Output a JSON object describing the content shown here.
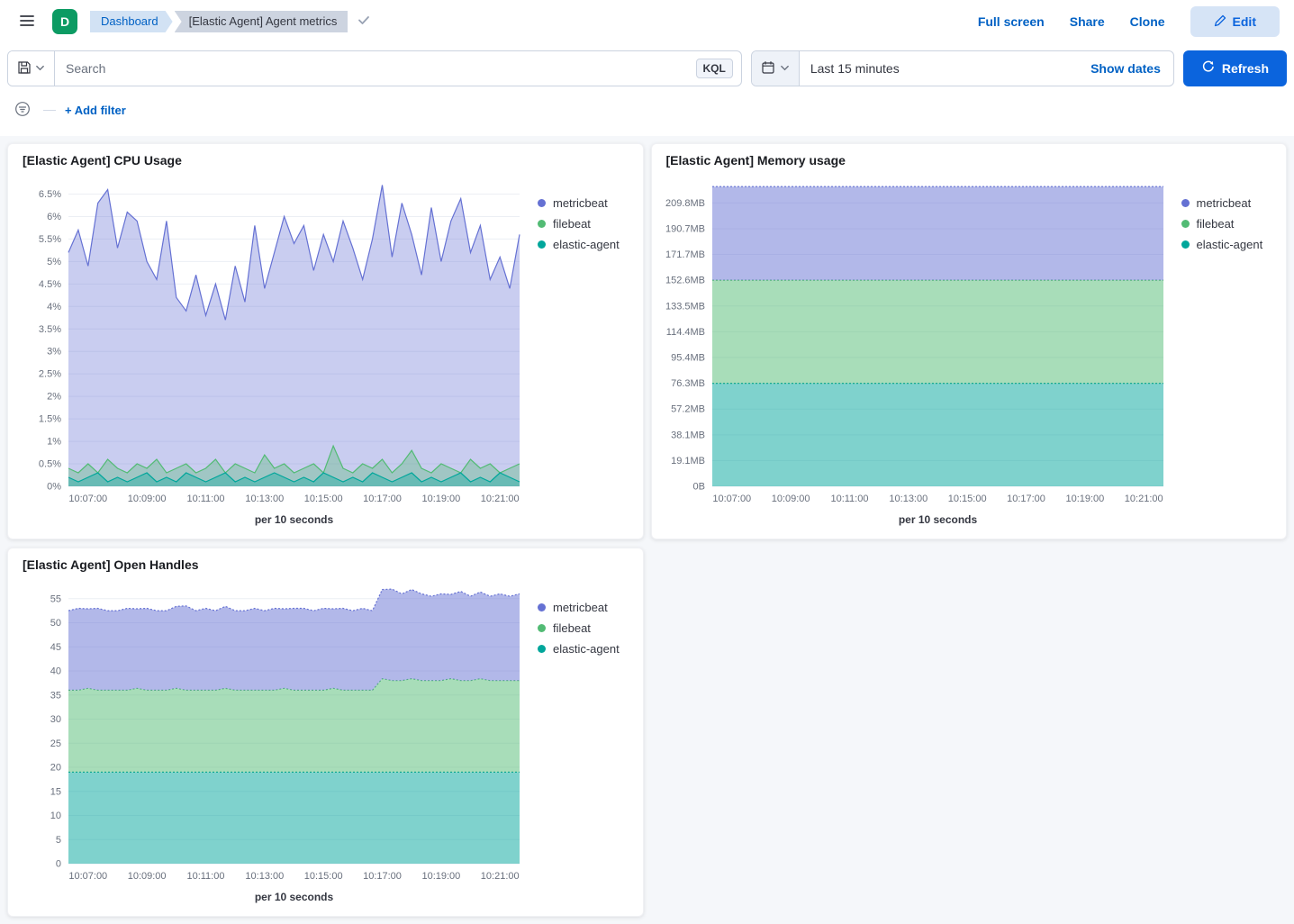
{
  "colors": {
    "primary_button": "#0b64dd",
    "link": "#0061c4"
  },
  "header": {
    "avatar_letter": "D",
    "breadcrumbs": {
      "parent": "Dashboard",
      "current": "[Elastic Agent] Agent metrics"
    },
    "actions": {
      "full_screen": "Full screen",
      "share": "Share",
      "clone": "Clone",
      "edit": "Edit"
    }
  },
  "query_bar": {
    "search_placeholder": "Search",
    "kql_badge": "KQL",
    "time_range_value": "Last 15 minutes",
    "show_dates_label": "Show dates",
    "refresh_label": "Refresh"
  },
  "filter_bar": {
    "add_filter_label": "+ Add filter"
  },
  "chart_data": [
    {
      "type": "area",
      "title": "[Elastic Agent] CPU Usage",
      "stacked": false,
      "fill_opacity": 0.35,
      "line_dash": "",
      "x_axis_title": "per 10 seconds",
      "y_max": 6.73,
      "y_ticks": [
        {
          "value": 0,
          "label": "0%"
        },
        {
          "value": 0.5,
          "label": "0.5%"
        },
        {
          "value": 1,
          "label": "1%"
        },
        {
          "value": 1.5,
          "label": "1.5%"
        },
        {
          "value": 2,
          "label": "2%"
        },
        {
          "value": 2.5,
          "label": "2.5%"
        },
        {
          "value": 3,
          "label": "3%"
        },
        {
          "value": 3.5,
          "label": "3.5%"
        },
        {
          "value": 4,
          "label": "4%"
        },
        {
          "value": 4.5,
          "label": "4.5%"
        },
        {
          "value": 5,
          "label": "5%"
        },
        {
          "value": 5.5,
          "label": "5.5%"
        },
        {
          "value": 6,
          "label": "6%"
        },
        {
          "value": 6.5,
          "label": "6.5%"
        }
      ],
      "x_ticks": [
        {
          "index": 2,
          "label": "10:07:00"
        },
        {
          "index": 8,
          "label": "10:09:00"
        },
        {
          "index": 14,
          "label": "10:11:00"
        },
        {
          "index": 20,
          "label": "10:13:00"
        },
        {
          "index": 26,
          "label": "10:15:00"
        },
        {
          "index": 32,
          "label": "10:17:00"
        },
        {
          "index": 38,
          "label": "10:19:00"
        },
        {
          "index": 44,
          "label": "10:21:00"
        }
      ],
      "series": [
        {
          "name": "metricbeat",
          "color": "#6571d3",
          "values": [
            5.2,
            5.7,
            4.9,
            6.3,
            6.6,
            5.3,
            6.1,
            5.9,
            5.0,
            4.6,
            5.9,
            4.2,
            3.9,
            4.7,
            3.8,
            4.5,
            3.7,
            4.9,
            4.1,
            5.8,
            4.4,
            5.2,
            6.0,
            5.4,
            5.8,
            4.8,
            5.6,
            5.0,
            5.9,
            5.3,
            4.6,
            5.5,
            6.7,
            5.1,
            6.3,
            5.6,
            4.7,
            6.2,
            5.0,
            5.9,
            6.4,
            5.2,
            5.8,
            4.6,
            5.1,
            4.4,
            5.6
          ]
        },
        {
          "name": "filebeat",
          "color": "#52bb74",
          "values": [
            0.4,
            0.3,
            0.5,
            0.3,
            0.6,
            0.4,
            0.3,
            0.5,
            0.4,
            0.6,
            0.3,
            0.4,
            0.5,
            0.3,
            0.4,
            0.6,
            0.3,
            0.5,
            0.4,
            0.3,
            0.7,
            0.4,
            0.5,
            0.3,
            0.4,
            0.5,
            0.3,
            0.9,
            0.4,
            0.3,
            0.5,
            0.4,
            0.6,
            0.3,
            0.5,
            0.8,
            0.4,
            0.3,
            0.5,
            0.4,
            0.3,
            0.6,
            0.4,
            0.5,
            0.3,
            0.4,
            0.5
          ]
        },
        {
          "name": "elastic-agent",
          "color": "#00a69b",
          "values": [
            0.2,
            0.1,
            0.2,
            0.3,
            0.1,
            0.2,
            0.1,
            0.2,
            0.3,
            0.1,
            0.2,
            0.1,
            0.3,
            0.2,
            0.1,
            0.2,
            0.3,
            0.1,
            0.2,
            0.1,
            0.2,
            0.3,
            0.2,
            0.1,
            0.2,
            0.1,
            0.3,
            0.2,
            0.1,
            0.2,
            0.1,
            0.3,
            0.2,
            0.1,
            0.2,
            0.3,
            0.1,
            0.2,
            0.1,
            0.2,
            0.3,
            0.1,
            0.2,
            0.1,
            0.3,
            0.2,
            0.1
          ]
        }
      ]
    },
    {
      "type": "area",
      "title": "[Elastic Agent] Memory usage",
      "stacked": true,
      "fill_opacity": 0.5,
      "line_dash": "2,2",
      "x_axis_title": "per 10 seconds",
      "y_max": 224,
      "y_ticks": [
        {
          "value": 0,
          "label": "0B"
        },
        {
          "value": 19.1,
          "label": "19.1MB"
        },
        {
          "value": 38.1,
          "label": "38.1MB"
        },
        {
          "value": 57.2,
          "label": "57.2MB"
        },
        {
          "value": 76.3,
          "label": "76.3MB"
        },
        {
          "value": 95.4,
          "label": "95.4MB"
        },
        {
          "value": 114.4,
          "label": "114.4MB"
        },
        {
          "value": 133.5,
          "label": "133.5MB"
        },
        {
          "value": 152.6,
          "label": "152.6MB"
        },
        {
          "value": 171.7,
          "label": "171.7MB"
        },
        {
          "value": 190.7,
          "label": "190.7MB"
        },
        {
          "value": 209.8,
          "label": "209.8MB"
        }
      ],
      "x_ticks": [
        {
          "index": 2,
          "label": "10:07:00"
        },
        {
          "index": 8,
          "label": "10:09:00"
        },
        {
          "index": 14,
          "label": "10:11:00"
        },
        {
          "index": 20,
          "label": "10:13:00"
        },
        {
          "index": 26,
          "label": "10:15:00"
        },
        {
          "index": 32,
          "label": "10:17:00"
        },
        {
          "index": 38,
          "label": "10:19:00"
        },
        {
          "index": 44,
          "label": "10:21:00"
        }
      ],
      "series": [
        {
          "name": "metricbeat",
          "color": "#6571d3",
          "values": {
            "repeat": 69.3,
            "count": 47
          }
        },
        {
          "name": "filebeat",
          "color": "#52bb74",
          "values": {
            "repeat": 76.3,
            "count": 47
          }
        },
        {
          "name": "elastic-agent",
          "color": "#00a69b",
          "values": {
            "repeat": 76.3,
            "count": 47
          }
        }
      ]
    },
    {
      "type": "area",
      "title": "[Elastic Agent] Open Handles",
      "stacked": true,
      "fill_opacity": 0.5,
      "line_dash": "2,2",
      "x_axis_title": "per 10 seconds",
      "y_max": 57.2,
      "y_ticks": [
        {
          "value": 0,
          "label": "0"
        },
        {
          "value": 5,
          "label": "5"
        },
        {
          "value": 10,
          "label": "10"
        },
        {
          "value": 15,
          "label": "15"
        },
        {
          "value": 20,
          "label": "20"
        },
        {
          "value": 25,
          "label": "25"
        },
        {
          "value": 30,
          "label": "30"
        },
        {
          "value": 35,
          "label": "35"
        },
        {
          "value": 40,
          "label": "40"
        },
        {
          "value": 45,
          "label": "45"
        },
        {
          "value": 50,
          "label": "50"
        },
        {
          "value": 55,
          "label": "55"
        }
      ],
      "x_ticks": [
        {
          "index": 2,
          "label": "10:07:00"
        },
        {
          "index": 8,
          "label": "10:09:00"
        },
        {
          "index": 14,
          "label": "10:11:00"
        },
        {
          "index": 20,
          "label": "10:13:00"
        },
        {
          "index": 26,
          "label": "10:15:00"
        },
        {
          "index": 32,
          "label": "10:17:00"
        },
        {
          "index": 38,
          "label": "10:19:00"
        },
        {
          "index": 44,
          "label": "10:21:00"
        }
      ],
      "series": [
        {
          "name": "metricbeat",
          "color": "#6571d3",
          "values": [
            16.5,
            17,
            16.5,
            17,
            16.5,
            16.5,
            17,
            16.5,
            17,
            16.5,
            16.5,
            17,
            17.5,
            16.5,
            17,
            16.5,
            17,
            16.5,
            16.5,
            17,
            16.5,
            17,
            16.5,
            17,
            17,
            16.5,
            17,
            16.5,
            17,
            16.5,
            17,
            16.5,
            18.5,
            19,
            18,
            18.5,
            18,
            17.5,
            18,
            17.5,
            18.5,
            17.5,
            18,
            17.5,
            18,
            17.5,
            18
          ]
        },
        {
          "name": "filebeat",
          "color": "#52bb74",
          "values": [
            17,
            17,
            17.4,
            17,
            17,
            17,
            17,
            17.4,
            17,
            17,
            17,
            17.4,
            17,
            17,
            17,
            17,
            17.4,
            17,
            17,
            17,
            17,
            17,
            17.4,
            17,
            17,
            17,
            17,
            17.4,
            17,
            17,
            17,
            17,
            19.4,
            19,
            19,
            19.4,
            19,
            19,
            19,
            19.4,
            19,
            19,
            19.4,
            19,
            19,
            19,
            19
          ]
        },
        {
          "name": "elastic-agent",
          "color": "#00a69b",
          "values": {
            "repeat": 19,
            "count": 47
          }
        }
      ]
    }
  ]
}
